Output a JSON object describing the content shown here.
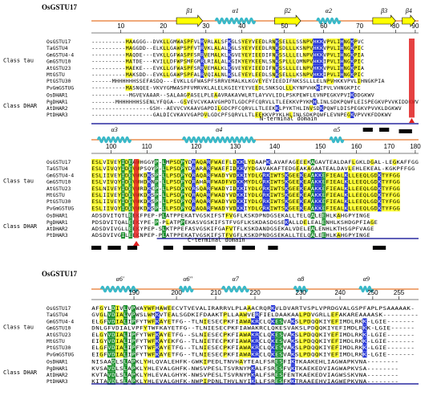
{
  "colors": {
    "consensus_green": "#1a8f2c",
    "conserved_yellow": "#ffff33",
    "basic_blue": "#1f2fd6",
    "active_red": "#e02020",
    "helix_cyan": "#39b9c9",
    "strand_yellow": "#ffff00",
    "ruler_line": "#e8762b",
    "domain_line": "#2a2aa0"
  },
  "blocks": [
    {
      "title": "OsGSTU17",
      "ruler_ticks": [
        "10",
        "20",
        "30",
        "40",
        "50",
        "60",
        "70",
        "80",
        "90"
      ],
      "secondary_structure": [
        {
          "kind": "strand",
          "label": "β1"
        },
        {
          "kind": "helix",
          "label": "α1"
        },
        {
          "kind": "strand",
          "label": "β2"
        },
        {
          "kind": "helix",
          "label": "α2"
        },
        {
          "kind": "strand",
          "label": "β3"
        },
        {
          "kind": "strand",
          "label": "β4"
        }
      ],
      "domain_label": "N-terminal domain",
      "sequences": [
        {
          "name": "OsGSTU17",
          "seq": "----------MAAGGG--DVKLLGMWASPFVLRVRLALSFKGLSYEYVEEDLRNKSELLLSSNPVHKKVPVLIHNGKPVC"
        },
        {
          "name": "TaGSTU4",
          "seq": "----------MAGGDD--ELKLLGAWPSPFVTRVKLALALKGLSYEYVEEDLRNKSDLLLKSNPVHKKVPVLIHNGKPIC"
        },
        {
          "name": "GmGSTU4-4",
          "seq": "----------MAQDE---EVKLLGFWASPFSRRVEMALKLKGVEYEYIEEDIFNKSSLLLELNPVHKKVPVLIHNGKPIA"
        },
        {
          "name": "GmGSTU10",
          "seq": "----------MATDE---KVILLDFWPSMFGMRLRIALALKGIKYEYKEENLSNKSPLLLQMNPVHKKIPVLIHNGKPIC"
        },
        {
          "name": "AtGSTU23",
          "seq": "----------MAEKE---EVKLLGFWASPFSRRVEMALKLKGVEYEYIEEDIFNKSSLLLELNPVHKKVPVLIHNGKPIA"
        },
        {
          "name": "MtGSTU",
          "seq": "----------MAKSDD--EVKLLGAWPSPFALRVQIALNLKSLEYEYLEEDLSNKSELLLKSNPVHKKIPVLIHNGKPIC"
        },
        {
          "name": "PtGSTU30",
          "seq": "------MHHHHHHSSEFASDQ---EVKLLGFWASPFSRRVEMALKLKGVEYEYIEEDIFNKSSLLLELNPVHKKVPVLIHNGKPIA"
        },
        {
          "name": "PvGmGSTUG",
          "seq": "----------MASNQEE-VKVYGMWASPFVMRVKLALELKGIEYEYVEEDLSNKSQLLLKYNPVHKKIPVLVHNGKPIC"
        },
        {
          "name": "OsDHAR1",
          "seq": "-----------MGVEVAAAR--SALAAGPASELPLEAAVRAKAVWLRTLAYVVLIDLPSKPEWFLEVNPEGKVPVIKDDGKWV"
        },
        {
          "name": "PgDHAR1",
          "seq": "-------MHHHHHHSSENLYFQGA--GSVEVCVKAAVGHPDTLGDCPFCQRVLLTLEEKKVPYKMHLINLSDKPQWFLEISPEGKVPVVKIDDKWV"
        },
        {
          "name": "AtDHAR2",
          "seq": "-----------------GSH--AEVVCVKAAVGAPDILGDCPFCQRVLLTLEEKKLPYKTHLINVSDKPQWFLDISPEGKVPVVKLDGKWV"
        },
        {
          "name": "PtDHAR3",
          "seq": "------------------GALDICVKAVVGAPDVLGDCPFSQRVLLTLEEKKVPYKLHLINLSDKPQWFLEVNPEGKVPVVKFDDKWV"
        }
      ]
    },
    {
      "title": "",
      "ruler_ticks": [
        "100",
        "110",
        "120",
        "130",
        "140",
        "150",
        "160",
        "170",
        "180"
      ],
      "secondary_structure": [
        {
          "kind": "helix",
          "label": "α3"
        },
        {
          "kind": "helix",
          "label": "α4"
        },
        {
          "kind": "helix",
          "label": "α5"
        }
      ],
      "domain_label": "C-terminal domain",
      "sequences": [
        {
          "name": "OsGSTU17",
          "seq": "ESLVIVEYIDEAWHGGYP-LMPSDPYDRAQARFWAEFLDKKLYDAAPKLAVAFAGEEEKAGAVTEALDAFLGKLDGAL-LEGKAFFGG"
        },
        {
          "name": "TaGSTU4",
          "seq": "ESLVIVQYIDEVWPSQYP-LLPSDPYDRARARFWAEFIDKKVYDGAVAKAFTEDGEAKAGAATEALDAVLEHLEKEAL-KGKPFFGG"
        },
        {
          "name": "GmGSTU4-4",
          "seq": "ESLIIVEYIDEVWKDKSP-LLPSDPYQRAQARFWADYVDKKIYDLGRKIWTSKGEEKEAAKKEFIEALKLLEEQLGDKTYFGG"
        },
        {
          "name": "GmGSTU10",
          "seq": "ESLVIVQYIDEVWHDKNP-LLPSDPYQRAHARFWADFVDKKMYDLGRKIWTSKGEEKEAAKKEFIEALKLLEEQLGDKTYFGG"
        },
        {
          "name": "AtGSTU23",
          "seq": "ESLNIVEYIDEVWRDKCP-LLPSDPYQRSQARFWADYIDKKIYDLGRKIWTSKGEEKEAAKKEFIEALKLLEEQLGDKTYFGG"
        },
        {
          "name": "MtGSTU",
          "seq": "ESLIIVEYIDEVWKDKSP-LLPSDPYQRAQARFWADYVDKKIYDLGRKIWTSKGEEKEAAKKEFIEALKLLEEQLGDKTYFGG"
        },
        {
          "name": "PtGSTU30",
          "seq": "ESLIIVEYIDEVWKDKSP-LLPSDPYQRAQARFWADYVDKKIYDLGRKIWTSKGEEKEAAKKEFIEALKLLEEQLGDKTYFGG"
        },
        {
          "name": "PvGmGSTUG",
          "seq": "ESLIIVQYIDEVWKDKSP-LLPSDPYQRAQARFWADYVDKKIYDLGRKIWTSKGEEKEAAKKEFIEALKLLEEQLGDKTYFGG"
        },
        {
          "name": "OsDHAR1",
          "seq": "ADSDVITQTLEEKFPEP-PLATPPEKATVGSKIFSTFVGFLKSKDPNDGSEKALLTELQALEEHLKAHGPYINGE"
        },
        {
          "name": "PgDHAR1",
          "seq": "PDSDVITQALEEKYPE-P-PLATPPEKASVGSKIFSTFVGFLKSKDASDGSEKALLDELEALENHLKSHDGPFIAGE"
        },
        {
          "name": "AtDHAR2",
          "seq": "ADSDVIVGLLEEKYPEP-SLKTPPEFASVGSKIFGAFVTFLKSKDANDGSEKALVDELEALENHLKTHSGPFVAGE"
        },
        {
          "name": "PtDHAR3",
          "seq": "ADSDVIVGILEEKNPEP-PLATPPEKATVGSKIFSTFVGFLKSKDPNDGSEKALLTELQALEEHLKAHGPYINGE"
        }
      ]
    },
    {
      "title": "OsGSTU17",
      "ruler_ticks": [
        "190",
        "200",
        "210",
        "220",
        "230",
        "240",
        "250",
        "255"
      ],
      "secondary_structure": [
        {
          "kind": "helix",
          "label": "α6'"
        },
        {
          "kind": "helix",
          "label": "α6''"
        },
        {
          "kind": "helix",
          "label": "α7"
        },
        {
          "kind": "helix",
          "label": "α8"
        },
        {
          "kind": "helix",
          "label": "α9"
        }
      ],
      "domain_label": "",
      "sequences": [
        {
          "name": "OsGSTU17",
          "seq": "AFGYLDIVLVPWAYWFHAWEECVTVEVALIRARRVLPLAAACRQRKVLDVARTVSPLVPRDGVALGSPFAPLPSAAAAAK-"
        },
        {
          "name": "TaGSTU4",
          "seq": "GVGLVDIALVPWSLWMKVTEALSGDKIFDAAKTPLLAAWVERFIELDAAKAALPDVGRLLEFAKAREAAAASK---------"
        },
        {
          "name": "GmGSTU4-4",
          "seq": "ELGFVDIALIPFYTWFKAYETFG--TLNIESECPKFIAWAKRCLQKESVAKSLPDQQKIYEFIMDLRKK-LGIE-------"
        },
        {
          "name": "GmGSTU10",
          "seq": "DNLGFVDIALVPFYTWFKAYETFG--TLNIESECPKFIAWAKRCLQKESVAKSLPDQQKIYEFIMDLRKK-LGIE------"
        },
        {
          "name": "AtGSTU23",
          "seq": "ELGYVDIALIPFYTWFKAYETFG--SLNIESECPKFIAWAKRCLQKESVAKSLPDQQKIYEFIMDLRKK-LGIE-------"
        },
        {
          "name": "MtGSTU",
          "seq": "EIGYVDIALIPFYTWFKAYEKFG--TLNIETECPKFIAWAKRCLQKESVAKSLPDQQKIYEFIMDLRKK-LGIE-------"
        },
        {
          "name": "PtGSTU30",
          "seq": "ELGFVDIALIPFYTWFKAYETFG--TLNIESECPKFIAWAKRCLQKESVAKSLPDQQKIYEFIMDLRKK-LGIE-------"
        },
        {
          "name": "PvGmGSTUG",
          "seq": "EIGFVDIALIPFYTWFKAYETFG--TLNIESECPKFIAWAKRCLQKESVAKSLPDQQKIYEFIMDLRKK-LGIE-------"
        },
        {
          "name": "OsDHAR1",
          "seq": "NISAADLSLAPKLYHLQVALEHFK-GWKIPEDLTNVHAYTEALFSRESFIKTKAAKEHLIAGWAPKVNA--------"
        },
        {
          "name": "PgDHAR1",
          "seq": "KVSAVDLSLAPKLYHLEVALGHFK-NWSVPESLTSVRNYMKALFSRESFVKTKAEKEDVIAGWAPKVSA--------"
        },
        {
          "name": "AtDHAR2",
          "seq": "KVTAVDLSLAPKLYHLEVALGHYK-NWSVPESLTSVRNYMKALFSRESFENTKAEKEDVIAGWSSKVNA--------"
        },
        {
          "name": "PtDHAR3",
          "seq": "KITAVDLSLAPKLYHLEVALGHFK-NWPIPDNLTHVLNYIKLLFSRESFKKTRAAEEHVIAGWEPKVNA--------"
        }
      ]
    }
  ],
  "class_labels": [
    "Class tau",
    "Class DHAR"
  ]
}
